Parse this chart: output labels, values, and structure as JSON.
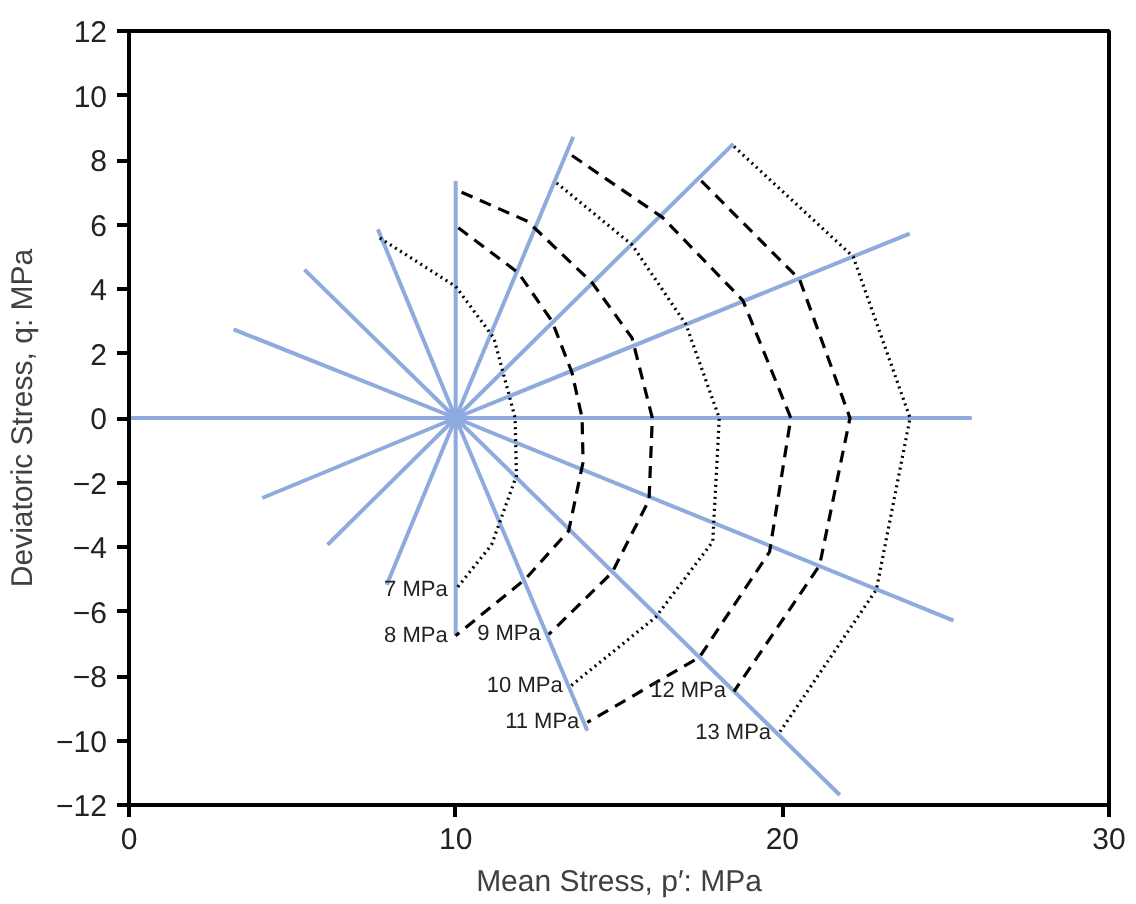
{
  "chart_data": {
    "type": "line",
    "xlabel": "Mean Stress, p′: MPa",
    "ylabel": "Deviatoric Stress, q: MPa",
    "xlim": [
      0,
      30
    ],
    "ylim": [
      -12,
      12
    ],
    "xticks": [
      0,
      10,
      20,
      30
    ],
    "yticks": [
      -12,
      -10,
      -8,
      -6,
      -4,
      -2,
      0,
      2,
      4,
      6,
      8,
      10,
      12
    ],
    "grid": false,
    "marker": "none",
    "series": [
      {
        "color": "#8faadc",
        "line_style": "solid",
        "x": [
          0,
          25.8
        ],
        "values": [
          0,
          0
        ]
      },
      {
        "color": "#8faadc",
        "line_style": "solid",
        "x": [
          3.2,
          10,
          25.24
        ],
        "values": [
          2.75,
          0,
          -6.28
        ]
      },
      {
        "color": "#8faadc",
        "line_style": "solid",
        "x": [
          5.37,
          10,
          21.76
        ],
        "values": [
          4.6,
          0,
          -11.69
        ]
      },
      {
        "color": "#8faadc",
        "line_style": "solid",
        "x": [
          7.62,
          10,
          14.03
        ],
        "values": [
          5.85,
          0,
          -9.7
        ]
      },
      {
        "color": "#8faadc",
        "line_style": "solid",
        "x": [
          10,
          10,
          10
        ],
        "values": [
          7.35,
          0,
          -6.75
        ]
      },
      {
        "color": "#8faadc",
        "line_style": "solid",
        "x": [
          13.6,
          10,
          7.89
        ],
        "values": [
          8.72,
          0,
          -5.17
        ]
      },
      {
        "color": "#8faadc",
        "line_style": "solid",
        "x": [
          18.5,
          10,
          6.08
        ],
        "values": [
          8.5,
          0,
          -3.93
        ]
      },
      {
        "color": "#8faadc",
        "line_style": "solid",
        "x": [
          23.9,
          10,
          4.08
        ],
        "values": [
          5.72,
          0,
          -2.48
        ]
      },
      {
        "color": "#000000",
        "line_style": "dotted",
        "x": [
          7.68,
          10,
          11.17,
          11.82,
          11.86,
          11.1,
          10
        ],
        "values": [
          5.58,
          4.08,
          2.48,
          0,
          -1.79,
          -3.93,
          -5.32
        ]
      },
      {
        "color": "#000000",
        "line_style": "dashed",
        "x": [
          10.08,
          11.92,
          12.95,
          13.56,
          13.87,
          13.9,
          13.46,
          12.13,
          10
        ],
        "values": [
          5.9,
          4.5,
          3.0,
          1.41,
          0,
          -1.37,
          -3.5,
          -5.0,
          -6.75
        ]
      },
      {
        "color": "#000000",
        "line_style": "dashed",
        "x": [
          10.18,
          12.2,
          14.18,
          15.4,
          16.02,
          15.92,
          14.79,
          12.85
        ],
        "values": [
          7.0,
          6.1,
          4.19,
          2.48,
          0,
          -2.54,
          -4.79,
          -6.71
        ]
      },
      {
        "color": "#000000",
        "line_style": "dotted",
        "x": [
          13.09,
          15.4,
          17.05,
          18.07,
          17.87,
          16.12,
          13.52
        ],
        "values": [
          7.29,
          5.37,
          2.9,
          0,
          -3.83,
          -6.18,
          -8.31
        ]
      },
      {
        "color": "#000000",
        "line_style": "dashed",
        "x": [
          13.56,
          16.33,
          18.79,
          20.26,
          19.61,
          17.46,
          14.03
        ],
        "values": [
          8.14,
          6.22,
          3.65,
          0,
          -4.15,
          -7.42,
          -9.44
        ]
      },
      {
        "color": "#000000",
        "line_style": "dashed",
        "x": [
          17.52,
          20.53,
          22.07,
          21.14,
          18.52
        ],
        "values": [
          7.35,
          4.29,
          0,
          -4.57,
          -8.48
        ]
      },
      {
        "color": "#000000",
        "line_style": "dotted",
        "x": [
          18.52,
          22.17,
          23.91,
          22.88,
          19.9
        ],
        "values": [
          8.42,
          5.0,
          0,
          -5.32,
          -9.77
        ]
      }
    ],
    "annotations": [
      {
        "text": "7 MPa",
        "x": 10,
        "y": -5.32
      },
      {
        "text": "8 MPa",
        "x": 10,
        "y": -6.75
      },
      {
        "text": "9 MPa",
        "x": 12.85,
        "y": -6.71
      },
      {
        "text": "10 MPa",
        "x": 13.52,
        "y": -8.31
      },
      {
        "text": "11 MPa",
        "x": 14.03,
        "y": -9.44
      },
      {
        "text": "12 MPa",
        "x": 18.52,
        "y": -8.48
      },
      {
        "text": "13 MPa",
        "x": 19.9,
        "y": -9.77
      }
    ]
  }
}
